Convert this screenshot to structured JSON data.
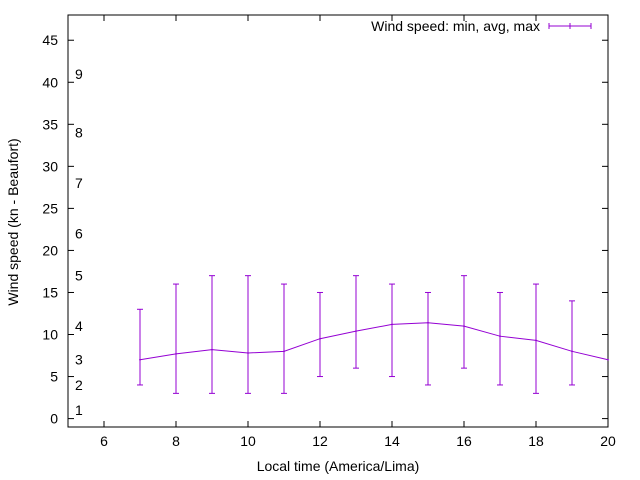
{
  "chart_data": {
    "type": "line",
    "xlabel": "Local time (America/Lima)",
    "ylabel": "Wind speed (kn - Beaufort)",
    "xlim": [
      5,
      20
    ],
    "ylim": [
      -1,
      48
    ],
    "xticks": [
      "6",
      "8",
      "10",
      "12",
      "14",
      "16",
      "18",
      "20"
    ],
    "yticks": [
      "0",
      "5",
      "10",
      "15",
      "20",
      "25",
      "30",
      "35",
      "40",
      "45"
    ],
    "beaufort_labels": [
      {
        "label": "1",
        "value": 1.0
      },
      {
        "label": "2",
        "value": 4.0
      },
      {
        "label": "3",
        "value": 7.0
      },
      {
        "label": "4",
        "value": 11.0
      },
      {
        "label": "5",
        "value": 17.0
      },
      {
        "label": "6",
        "value": 22.0
      },
      {
        "label": "7",
        "value": 28.0
      },
      {
        "label": "8",
        "value": 34.0
      },
      {
        "label": "9",
        "value": 41.0
      }
    ],
    "grid": false,
    "legend": "top-right",
    "series": [
      {
        "name": "Wind speed: min, avg, max",
        "color": "#9400d3",
        "x": [
          7,
          8,
          9,
          10,
          11,
          12,
          13,
          14,
          15,
          16,
          17,
          18,
          19,
          20
        ],
        "avg": [
          7.0,
          7.7,
          8.2,
          7.8,
          8.0,
          9.5,
          10.4,
          11.2,
          11.4,
          11.0,
          9.8,
          9.3,
          8.0,
          7.0
        ],
        "min": [
          4,
          3,
          3,
          3,
          3,
          5,
          6,
          5,
          4,
          6,
          4,
          3,
          4,
          7
        ],
        "max": [
          13,
          16,
          17,
          17,
          16,
          15,
          17,
          16,
          15,
          17,
          15,
          16,
          14,
          7
        ]
      }
    ]
  }
}
